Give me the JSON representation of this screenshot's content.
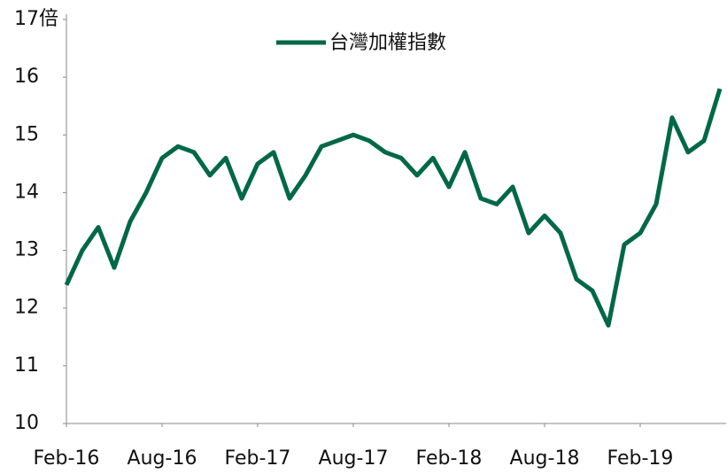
{
  "chart_data": {
    "type": "line",
    "categories": [
      "Feb-16",
      null,
      null,
      null,
      null,
      null,
      "Aug-16",
      null,
      null,
      null,
      null,
      null,
      "Feb-17",
      null,
      null,
      null,
      null,
      null,
      "Aug-17",
      null,
      null,
      null,
      null,
      null,
      "Feb-18",
      null,
      null,
      null,
      null,
      null,
      "Aug-18",
      null,
      null,
      null,
      null,
      null,
      "Feb-19",
      null,
      null,
      null,
      null,
      null
    ],
    "series": [
      {
        "name": "台灣加權指數",
        "color": "#006847",
        "values": [
          12.4,
          13.0,
          13.4,
          12.7,
          13.5,
          14.0,
          14.6,
          14.8,
          14.7,
          14.3,
          14.6,
          13.9,
          14.5,
          14.7,
          13.9,
          14.3,
          14.8,
          14.9,
          15.0,
          14.9,
          14.7,
          14.6,
          14.3,
          14.6,
          14.1,
          14.7,
          13.9,
          13.8,
          14.1,
          13.3,
          13.6,
          13.3,
          12.5,
          12.3,
          11.7,
          13.1,
          13.3,
          13.8,
          15.3,
          14.7,
          14.9,
          15.8
        ]
      }
    ],
    "ylim": [
      10,
      17
    ],
    "yticks": [
      10,
      11,
      12,
      13,
      14,
      15,
      16,
      {
        "value": 17,
        "label": "17倍"
      }
    ],
    "grid": false,
    "legend": "top"
  }
}
